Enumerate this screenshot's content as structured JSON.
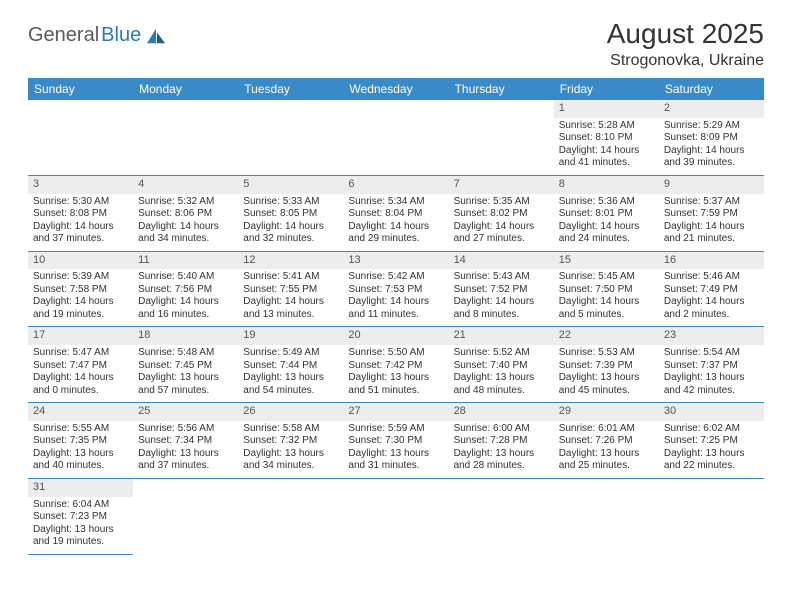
{
  "logo": {
    "part1": "General",
    "part2": "Blue"
  },
  "title": "August 2025",
  "location": "Strogonovka, Ukraine",
  "header_bg": "#3a8ac8",
  "header_text": "#ffffff",
  "shade_bg": "#ededed",
  "divider_color": "#3a8ac8",
  "weekdays": [
    "Sunday",
    "Monday",
    "Tuesday",
    "Wednesday",
    "Thursday",
    "Friday",
    "Saturday"
  ],
  "weeks": [
    [
      null,
      null,
      null,
      null,
      null,
      {
        "n": "1",
        "sr": "Sunrise: 5:28 AM",
        "ss": "Sunset: 8:10 PM",
        "dl": "Daylight: 14 hours and 41 minutes."
      },
      {
        "n": "2",
        "sr": "Sunrise: 5:29 AM",
        "ss": "Sunset: 8:09 PM",
        "dl": "Daylight: 14 hours and 39 minutes."
      }
    ],
    [
      {
        "n": "3",
        "sr": "Sunrise: 5:30 AM",
        "ss": "Sunset: 8:08 PM",
        "dl": "Daylight: 14 hours and 37 minutes."
      },
      {
        "n": "4",
        "sr": "Sunrise: 5:32 AM",
        "ss": "Sunset: 8:06 PM",
        "dl": "Daylight: 14 hours and 34 minutes."
      },
      {
        "n": "5",
        "sr": "Sunrise: 5:33 AM",
        "ss": "Sunset: 8:05 PM",
        "dl": "Daylight: 14 hours and 32 minutes."
      },
      {
        "n": "6",
        "sr": "Sunrise: 5:34 AM",
        "ss": "Sunset: 8:04 PM",
        "dl": "Daylight: 14 hours and 29 minutes."
      },
      {
        "n": "7",
        "sr": "Sunrise: 5:35 AM",
        "ss": "Sunset: 8:02 PM",
        "dl": "Daylight: 14 hours and 27 minutes."
      },
      {
        "n": "8",
        "sr": "Sunrise: 5:36 AM",
        "ss": "Sunset: 8:01 PM",
        "dl": "Daylight: 14 hours and 24 minutes."
      },
      {
        "n": "9",
        "sr": "Sunrise: 5:37 AM",
        "ss": "Sunset: 7:59 PM",
        "dl": "Daylight: 14 hours and 21 minutes."
      }
    ],
    [
      {
        "n": "10",
        "sr": "Sunrise: 5:39 AM",
        "ss": "Sunset: 7:58 PM",
        "dl": "Daylight: 14 hours and 19 minutes."
      },
      {
        "n": "11",
        "sr": "Sunrise: 5:40 AM",
        "ss": "Sunset: 7:56 PM",
        "dl": "Daylight: 14 hours and 16 minutes."
      },
      {
        "n": "12",
        "sr": "Sunrise: 5:41 AM",
        "ss": "Sunset: 7:55 PM",
        "dl": "Daylight: 14 hours and 13 minutes."
      },
      {
        "n": "13",
        "sr": "Sunrise: 5:42 AM",
        "ss": "Sunset: 7:53 PM",
        "dl": "Daylight: 14 hours and 11 minutes."
      },
      {
        "n": "14",
        "sr": "Sunrise: 5:43 AM",
        "ss": "Sunset: 7:52 PM",
        "dl": "Daylight: 14 hours and 8 minutes."
      },
      {
        "n": "15",
        "sr": "Sunrise: 5:45 AM",
        "ss": "Sunset: 7:50 PM",
        "dl": "Daylight: 14 hours and 5 minutes."
      },
      {
        "n": "16",
        "sr": "Sunrise: 5:46 AM",
        "ss": "Sunset: 7:49 PM",
        "dl": "Daylight: 14 hours and 2 minutes."
      }
    ],
    [
      {
        "n": "17",
        "sr": "Sunrise: 5:47 AM",
        "ss": "Sunset: 7:47 PM",
        "dl": "Daylight: 14 hours and 0 minutes."
      },
      {
        "n": "18",
        "sr": "Sunrise: 5:48 AM",
        "ss": "Sunset: 7:45 PM",
        "dl": "Daylight: 13 hours and 57 minutes."
      },
      {
        "n": "19",
        "sr": "Sunrise: 5:49 AM",
        "ss": "Sunset: 7:44 PM",
        "dl": "Daylight: 13 hours and 54 minutes."
      },
      {
        "n": "20",
        "sr": "Sunrise: 5:50 AM",
        "ss": "Sunset: 7:42 PM",
        "dl": "Daylight: 13 hours and 51 minutes."
      },
      {
        "n": "21",
        "sr": "Sunrise: 5:52 AM",
        "ss": "Sunset: 7:40 PM",
        "dl": "Daylight: 13 hours and 48 minutes."
      },
      {
        "n": "22",
        "sr": "Sunrise: 5:53 AM",
        "ss": "Sunset: 7:39 PM",
        "dl": "Daylight: 13 hours and 45 minutes."
      },
      {
        "n": "23",
        "sr": "Sunrise: 5:54 AM",
        "ss": "Sunset: 7:37 PM",
        "dl": "Daylight: 13 hours and 42 minutes."
      }
    ],
    [
      {
        "n": "24",
        "sr": "Sunrise: 5:55 AM",
        "ss": "Sunset: 7:35 PM",
        "dl": "Daylight: 13 hours and 40 minutes."
      },
      {
        "n": "25",
        "sr": "Sunrise: 5:56 AM",
        "ss": "Sunset: 7:34 PM",
        "dl": "Daylight: 13 hours and 37 minutes."
      },
      {
        "n": "26",
        "sr": "Sunrise: 5:58 AM",
        "ss": "Sunset: 7:32 PM",
        "dl": "Daylight: 13 hours and 34 minutes."
      },
      {
        "n": "27",
        "sr": "Sunrise: 5:59 AM",
        "ss": "Sunset: 7:30 PM",
        "dl": "Daylight: 13 hours and 31 minutes."
      },
      {
        "n": "28",
        "sr": "Sunrise: 6:00 AM",
        "ss": "Sunset: 7:28 PM",
        "dl": "Daylight: 13 hours and 28 minutes."
      },
      {
        "n": "29",
        "sr": "Sunrise: 6:01 AM",
        "ss": "Sunset: 7:26 PM",
        "dl": "Daylight: 13 hours and 25 minutes."
      },
      {
        "n": "30",
        "sr": "Sunrise: 6:02 AM",
        "ss": "Sunset: 7:25 PM",
        "dl": "Daylight: 13 hours and 22 minutes."
      }
    ],
    [
      {
        "n": "31",
        "sr": "Sunrise: 6:04 AM",
        "ss": "Sunset: 7:23 PM",
        "dl": "Daylight: 13 hours and 19 minutes."
      },
      null,
      null,
      null,
      null,
      null,
      null
    ]
  ]
}
